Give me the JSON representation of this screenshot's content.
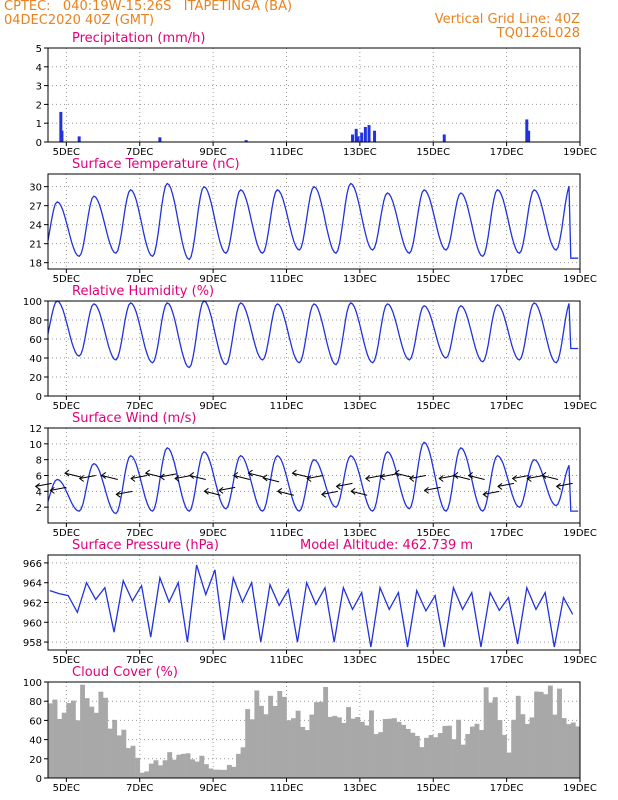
{
  "header": {
    "line1_left": "CPTEC:   040:19W-15:26S   ITAPETINGA (BA)",
    "line2_left": "04DEC2020 40Z (GMT)",
    "line1_right": "Vertical Grid Line: 40Z",
    "line2_right": "TQ0126L028"
  },
  "colors": {
    "series": "#2233dd",
    "cloud": "#a8a8a8",
    "title": "#e0007a",
    "header": "#e8821e"
  },
  "chart_data": [
    {
      "id": "precip",
      "type": "bar",
      "title": "Precipitation (mm/h)",
      "ylim": [
        0,
        5
      ],
      "yticks": [
        "0",
        "1",
        "2",
        "3",
        "4",
        "5"
      ],
      "xticks": [
        "5DEC",
        "7DEC",
        "9DEC",
        "11DEC",
        "13DEC",
        "15DEC",
        "17DEC",
        "19DEC"
      ],
      "x_days": [
        4.5,
        19
      ],
      "bars": [
        [
          4.85,
          1.6
        ],
        [
          4.88,
          0.6
        ],
        [
          5.35,
          0.3
        ],
        [
          7.55,
          0.25
        ],
        [
          9.9,
          0.1
        ],
        [
          12.8,
          0.4
        ],
        [
          12.9,
          0.7
        ],
        [
          12.95,
          0.3
        ],
        [
          13.05,
          0.5
        ],
        [
          13.15,
          0.8
        ],
        [
          13.25,
          0.9
        ],
        [
          13.4,
          0.6
        ],
        [
          15.3,
          0.4
        ],
        [
          17.55,
          1.2
        ],
        [
          17.6,
          0.6
        ]
      ],
      "grid": true
    },
    {
      "id": "temp",
      "type": "line",
      "title": "Surface Temperature (nC)",
      "ylim": [
        17,
        32
      ],
      "yticks": [
        "18",
        "21",
        "24",
        "27",
        "30"
      ],
      "xticks": [
        "5DEC",
        "7DEC",
        "9DEC",
        "11DEC",
        "13DEC",
        "15DEC",
        "17DEC",
        "19DEC"
      ],
      "min": [
        18.7,
        19.0,
        19.5,
        19.0,
        18.5,
        19.5,
        19.5,
        20.0,
        19.5,
        20.0,
        19.5,
        20.0,
        19.0,
        19.5,
        20.0
      ],
      "max": [
        27.6,
        28.5,
        29.5,
        30.5,
        30.0,
        29.5,
        29.5,
        30.0,
        30.5,
        29.0,
        29.5,
        29.0,
        29.5,
        29.5,
        30.5
      ],
      "grid": true
    },
    {
      "id": "rh",
      "type": "line",
      "title": "Relative Humidity (%)",
      "ylim": [
        0,
        100
      ],
      "yticks": [
        "0",
        "20",
        "40",
        "60",
        "80",
        "100"
      ],
      "xticks": [
        "5DEC",
        "7DEC",
        "9DEC",
        "11DEC",
        "13DEC",
        "15DEC",
        "17DEC",
        "19DEC"
      ],
      "min": [
        50,
        42,
        38,
        35,
        30,
        33,
        38,
        35,
        33,
        35,
        38,
        40,
        36,
        38,
        35
      ],
      "max": [
        100,
        97,
        98,
        98,
        100,
        98,
        97,
        97,
        98,
        97,
        95,
        95,
        96,
        98,
        100
      ],
      "grid": true
    },
    {
      "id": "wind",
      "type": "line",
      "title": "Surface Wind (m/s)",
      "ylim": [
        0,
        12
      ],
      "yticks": [
        "2",
        "4",
        "6",
        "8",
        "10",
        "12"
      ],
      "xticks": [
        "5DEC",
        "7DEC",
        "9DEC",
        "11DEC",
        "13DEC",
        "15DEC",
        "17DEC",
        "19DEC"
      ],
      "min": [
        1.5,
        1.5,
        1.2,
        1.5,
        1.5,
        1.8,
        1.5,
        1.5,
        2.0,
        1.5,
        1.8,
        1.5,
        1.5,
        2.0,
        2.2
      ],
      "max": [
        5.5,
        7.5,
        8.5,
        9.5,
        9.0,
        8.5,
        8.5,
        8.0,
        8.5,
        9.0,
        10.2,
        9.5,
        8.5,
        8.0,
        7.5
      ],
      "arrows": [
        [
          4.6,
          5
        ],
        [
          5.0,
          4.5
        ],
        [
          5.4,
          5.8
        ],
        [
          5.8,
          6
        ],
        [
          6.4,
          5.5
        ],
        [
          6.8,
          4
        ],
        [
          7.2,
          6
        ],
        [
          7.6,
          5.8
        ],
        [
          8.0,
          6.2
        ],
        [
          8.4,
          6
        ],
        [
          8.8,
          5.5
        ],
        [
          9.2,
          3.5
        ],
        [
          9.6,
          4.5
        ],
        [
          10.0,
          5.5
        ],
        [
          10.4,
          5.8
        ],
        [
          10.8,
          5.2
        ],
        [
          11.2,
          3.5
        ],
        [
          11.6,
          5.8
        ],
        [
          12.0,
          6
        ],
        [
          12.4,
          4
        ],
        [
          12.8,
          5
        ],
        [
          13.2,
          3.5
        ],
        [
          13.6,
          6
        ],
        [
          14.0,
          6.2
        ],
        [
          14.4,
          5.8
        ],
        [
          14.8,
          6
        ],
        [
          15.2,
          4.5
        ],
        [
          15.6,
          6
        ],
        [
          16.0,
          5.5
        ],
        [
          16.4,
          5.5
        ],
        [
          16.8,
          4
        ],
        [
          17.2,
          5
        ],
        [
          17.6,
          6
        ],
        [
          18.0,
          6
        ],
        [
          18.4,
          5.5
        ],
        [
          18.8,
          5
        ]
      ],
      "grid": true
    },
    {
      "id": "press",
      "type": "line",
      "title": "Surface Pressure (hPa)",
      "annotation": "Model Altitude: 462.739 m",
      "ylim": [
        957.2,
        966.8
      ],
      "yticks": [
        "958",
        "960",
        "962",
        "964",
        "966"
      ],
      "xticks": [
        "5DEC",
        "7DEC",
        "9DEC",
        "11DEC",
        "13DEC",
        "15DEC",
        "17DEC",
        "19DEC"
      ],
      "hi": [
        963.2,
        964.0,
        964.2,
        964.5,
        965.8,
        964.5,
        963.8,
        964.0,
        963.5,
        963.5,
        963.2,
        963.5,
        963.0,
        963.5,
        962.5
      ],
      "lo": [
        961.0,
        959.0,
        958.5,
        958.0,
        958.2,
        958.0,
        958.0,
        958.0,
        957.5,
        957.5,
        957.5,
        957.5,
        957.8,
        957.5,
        957.5
      ],
      "grid": true
    },
    {
      "id": "cloud",
      "type": "bar",
      "title": "Cloud Cover (%)",
      "ylim": [
        0,
        100
      ],
      "yticks": [
        "0",
        "20",
        "40",
        "60",
        "80",
        "100"
      ],
      "xticks": [
        "5DEC",
        "7DEC",
        "9DEC",
        "11DEC",
        "13DEC",
        "15DEC",
        "17DEC",
        "19DEC"
      ],
      "profile": [
        [
          4.5,
          92
        ],
        [
          5.0,
          95
        ],
        [
          5.5,
          93
        ],
        [
          6.0,
          90
        ],
        [
          6.4,
          60
        ],
        [
          6.8,
          35
        ],
        [
          7.0,
          8
        ],
        [
          7.5,
          20
        ],
        [
          8.0,
          30
        ],
        [
          8.5,
          25
        ],
        [
          9.0,
          10
        ],
        [
          9.5,
          15
        ],
        [
          10.0,
          85
        ],
        [
          10.5,
          95
        ],
        [
          11.0,
          90
        ],
        [
          11.5,
          80
        ],
        [
          12.0,
          88
        ],
        [
          12.5,
          70
        ],
        [
          13.0,
          80
        ],
        [
          13.5,
          65
        ],
        [
          14.0,
          55
        ],
        [
          14.5,
          50
        ],
        [
          15.0,
          60
        ],
        [
          15.5,
          55
        ],
        [
          16.0,
          60
        ],
        [
          16.5,
          95
        ],
        [
          17.0,
          40
        ],
        [
          17.3,
          90
        ],
        [
          17.8,
          95
        ],
        [
          18.3,
          92
        ],
        [
          18.8,
          90
        ],
        [
          19.0,
          85
        ]
      ],
      "grid": true
    }
  ]
}
